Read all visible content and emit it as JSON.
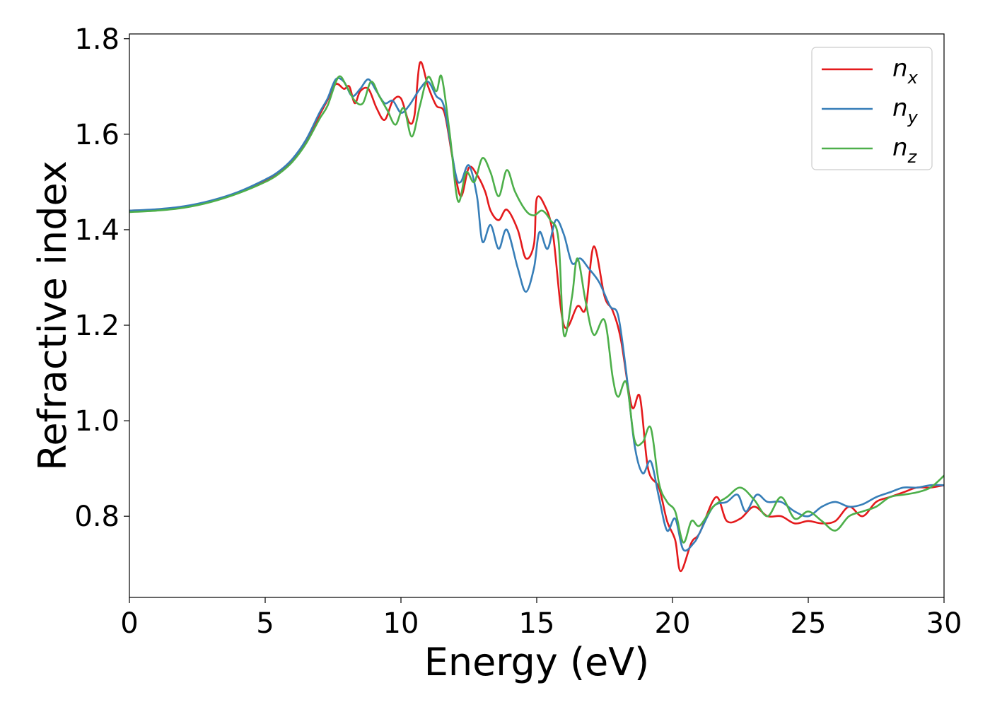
{
  "chart_data": {
    "type": "line",
    "title": "",
    "xlabel": "Energy (eV)",
    "ylabel": "Refractive index",
    "xlim": [
      0,
      30
    ],
    "ylim": [
      0.63,
      1.81
    ],
    "x_ticks": [
      0,
      5,
      10,
      15,
      20,
      25,
      30
    ],
    "x_tick_labels": [
      "0",
      "5",
      "10",
      "15",
      "20",
      "25",
      "30"
    ],
    "y_ticks": [
      0.8,
      1.0,
      1.2,
      1.4,
      1.6,
      1.8
    ],
    "y_tick_labels": [
      "0.8",
      "1.0",
      "1.2",
      "1.4",
      "1.6",
      "1.8"
    ],
    "grid": false,
    "legend_position": "top-right",
    "series": [
      {
        "name": "n_x",
        "label_main": "n",
        "label_sub": "x",
        "color": "#e41a1c",
        "points": [
          [
            0,
            1.44
          ],
          [
            1,
            1.442
          ],
          [
            2,
            1.448
          ],
          [
            3,
            1.46
          ],
          [
            4,
            1.478
          ],
          [
            5,
            1.503
          ],
          [
            5.5,
            1.52
          ],
          [
            6,
            1.545
          ],
          [
            6.5,
            1.585
          ],
          [
            7,
            1.64
          ],
          [
            7.3,
            1.672
          ],
          [
            7.6,
            1.705
          ],
          [
            7.9,
            1.695
          ],
          [
            8.1,
            1.7
          ],
          [
            8.3,
            1.665
          ],
          [
            8.5,
            1.69
          ],
          [
            8.8,
            1.695
          ],
          [
            9.1,
            1.655
          ],
          [
            9.4,
            1.63
          ],
          [
            9.7,
            1.67
          ],
          [
            10.0,
            1.675
          ],
          [
            10.3,
            1.625
          ],
          [
            10.5,
            1.64
          ],
          [
            10.7,
            1.75
          ],
          [
            11.0,
            1.7
          ],
          [
            11.3,
            1.66
          ],
          [
            11.6,
            1.645
          ],
          [
            11.9,
            1.55
          ],
          [
            12.2,
            1.47
          ],
          [
            12.5,
            1.53
          ],
          [
            12.8,
            1.515
          ],
          [
            13.1,
            1.48
          ],
          [
            13.3,
            1.44
          ],
          [
            13.6,
            1.42
          ],
          [
            13.9,
            1.442
          ],
          [
            14.3,
            1.4
          ],
          [
            14.6,
            1.34
          ],
          [
            14.9,
            1.37
          ],
          [
            15.0,
            1.465
          ],
          [
            15.3,
            1.45
          ],
          [
            15.6,
            1.39
          ],
          [
            16.0,
            1.2
          ],
          [
            16.5,
            1.24
          ],
          [
            16.8,
            1.235
          ],
          [
            17.1,
            1.365
          ],
          [
            17.5,
            1.26
          ],
          [
            17.8,
            1.23
          ],
          [
            18.1,
            1.17
          ],
          [
            18.5,
            1.03
          ],
          [
            18.8,
            1.05
          ],
          [
            19.1,
            0.9
          ],
          [
            19.5,
            0.86
          ],
          [
            19.8,
            0.79
          ],
          [
            20.1,
            0.75
          ],
          [
            20.3,
            0.685
          ],
          [
            20.7,
            0.745
          ],
          [
            21.0,
            0.765
          ],
          [
            21.6,
            0.84
          ],
          [
            22.0,
            0.79
          ],
          [
            22.5,
            0.795
          ],
          [
            23.0,
            0.82
          ],
          [
            23.5,
            0.8
          ],
          [
            24.0,
            0.8
          ],
          [
            24.5,
            0.785
          ],
          [
            25.0,
            0.79
          ],
          [
            25.5,
            0.785
          ],
          [
            26.0,
            0.79
          ],
          [
            26.5,
            0.82
          ],
          [
            27.0,
            0.8
          ],
          [
            27.5,
            0.83
          ],
          [
            28.0,
            0.84
          ],
          [
            28.5,
            0.85
          ],
          [
            29.0,
            0.86
          ],
          [
            29.5,
            0.86
          ],
          [
            30,
            0.865
          ]
        ]
      },
      {
        "name": "n_y",
        "label_main": "n",
        "label_sub": "y",
        "color": "#377eb8",
        "points": [
          [
            0,
            1.44
          ],
          [
            1,
            1.443
          ],
          [
            2,
            1.449
          ],
          [
            3,
            1.461
          ],
          [
            4,
            1.479
          ],
          [
            5,
            1.505
          ],
          [
            5.5,
            1.522
          ],
          [
            6,
            1.548
          ],
          [
            6.5,
            1.588
          ],
          [
            7,
            1.645
          ],
          [
            7.3,
            1.675
          ],
          [
            7.6,
            1.715
          ],
          [
            7.9,
            1.71
          ],
          [
            8.2,
            1.68
          ],
          [
            8.5,
            1.695
          ],
          [
            8.8,
            1.715
          ],
          [
            9.1,
            1.69
          ],
          [
            9.4,
            1.665
          ],
          [
            9.7,
            1.67
          ],
          [
            10.0,
            1.645
          ],
          [
            10.3,
            1.66
          ],
          [
            10.7,
            1.695
          ],
          [
            11.0,
            1.71
          ],
          [
            11.3,
            1.68
          ],
          [
            11.6,
            1.655
          ],
          [
            12.0,
            1.52
          ],
          [
            12.2,
            1.5
          ],
          [
            12.5,
            1.535
          ],
          [
            12.8,
            1.47
          ],
          [
            13.0,
            1.375
          ],
          [
            13.3,
            1.41
          ],
          [
            13.6,
            1.36
          ],
          [
            13.9,
            1.4
          ],
          [
            14.3,
            1.32
          ],
          [
            14.6,
            1.27
          ],
          [
            14.9,
            1.32
          ],
          [
            15.1,
            1.395
          ],
          [
            15.4,
            1.36
          ],
          [
            15.7,
            1.42
          ],
          [
            16.0,
            1.39
          ],
          [
            16.3,
            1.33
          ],
          [
            16.6,
            1.34
          ],
          [
            16.9,
            1.32
          ],
          [
            17.3,
            1.29
          ],
          [
            17.7,
            1.24
          ],
          [
            18.0,
            1.22
          ],
          [
            18.3,
            1.1
          ],
          [
            18.6,
            0.95
          ],
          [
            18.9,
            0.89
          ],
          [
            19.2,
            0.915
          ],
          [
            19.5,
            0.84
          ],
          [
            19.8,
            0.77
          ],
          [
            20.1,
            0.795
          ],
          [
            20.4,
            0.73
          ],
          [
            20.8,
            0.745
          ],
          [
            21.0,
            0.765
          ],
          [
            21.5,
            0.82
          ],
          [
            22.0,
            0.83
          ],
          [
            22.4,
            0.845
          ],
          [
            22.7,
            0.81
          ],
          [
            23.1,
            0.845
          ],
          [
            23.5,
            0.83
          ],
          [
            24.0,
            0.83
          ],
          [
            24.5,
            0.81
          ],
          [
            25.0,
            0.8
          ],
          [
            25.5,
            0.82
          ],
          [
            26.0,
            0.83
          ],
          [
            26.5,
            0.82
          ],
          [
            27.0,
            0.825
          ],
          [
            27.5,
            0.84
          ],
          [
            28.0,
            0.85
          ],
          [
            28.5,
            0.86
          ],
          [
            29.0,
            0.86
          ],
          [
            29.5,
            0.865
          ],
          [
            30,
            0.865
          ]
        ]
      },
      {
        "name": "n_z",
        "label_main": "n",
        "label_sub": "z",
        "color": "#4daf4a",
        "points": [
          [
            0,
            1.437
          ],
          [
            1,
            1.44
          ],
          [
            2,
            1.446
          ],
          [
            3,
            1.458
          ],
          [
            4,
            1.476
          ],
          [
            5,
            1.5
          ],
          [
            5.5,
            1.517
          ],
          [
            6,
            1.542
          ],
          [
            6.5,
            1.58
          ],
          [
            7,
            1.632
          ],
          [
            7.3,
            1.66
          ],
          [
            7.7,
            1.72
          ],
          [
            8.0,
            1.7
          ],
          [
            8.3,
            1.67
          ],
          [
            8.6,
            1.665
          ],
          [
            8.9,
            1.71
          ],
          [
            9.2,
            1.68
          ],
          [
            9.5,
            1.65
          ],
          [
            9.8,
            1.62
          ],
          [
            10.1,
            1.655
          ],
          [
            10.4,
            1.595
          ],
          [
            10.7,
            1.66
          ],
          [
            11.0,
            1.72
          ],
          [
            11.3,
            1.69
          ],
          [
            11.5,
            1.72
          ],
          [
            11.8,
            1.6
          ],
          [
            12.1,
            1.46
          ],
          [
            12.4,
            1.52
          ],
          [
            12.7,
            1.5
          ],
          [
            13.0,
            1.55
          ],
          [
            13.3,
            1.52
          ],
          [
            13.6,
            1.47
          ],
          [
            13.9,
            1.525
          ],
          [
            14.2,
            1.48
          ],
          [
            14.6,
            1.44
          ],
          [
            14.9,
            1.43
          ],
          [
            15.2,
            1.44
          ],
          [
            15.5,
            1.42
          ],
          [
            15.8,
            1.38
          ],
          [
            16.0,
            1.18
          ],
          [
            16.3,
            1.26
          ],
          [
            16.5,
            1.34
          ],
          [
            16.8,
            1.25
          ],
          [
            17.1,
            1.18
          ],
          [
            17.5,
            1.21
          ],
          [
            17.8,
            1.09
          ],
          [
            18.0,
            1.05
          ],
          [
            18.3,
            1.08
          ],
          [
            18.6,
            0.96
          ],
          [
            18.9,
            0.955
          ],
          [
            19.2,
            0.985
          ],
          [
            19.5,
            0.87
          ],
          [
            19.8,
            0.83
          ],
          [
            20.1,
            0.81
          ],
          [
            20.4,
            0.745
          ],
          [
            20.7,
            0.79
          ],
          [
            21.0,
            0.78
          ],
          [
            21.5,
            0.82
          ],
          [
            22.0,
            0.84
          ],
          [
            22.5,
            0.86
          ],
          [
            23.0,
            0.835
          ],
          [
            23.5,
            0.8
          ],
          [
            24.0,
            0.84
          ],
          [
            24.5,
            0.795
          ],
          [
            25.0,
            0.81
          ],
          [
            25.5,
            0.79
          ],
          [
            26.0,
            0.77
          ],
          [
            26.5,
            0.8
          ],
          [
            27.0,
            0.81
          ],
          [
            27.5,
            0.82
          ],
          [
            28.0,
            0.84
          ],
          [
            28.5,
            0.845
          ],
          [
            29.0,
            0.85
          ],
          [
            29.5,
            0.86
          ],
          [
            30,
            0.885
          ]
        ]
      }
    ]
  }
}
